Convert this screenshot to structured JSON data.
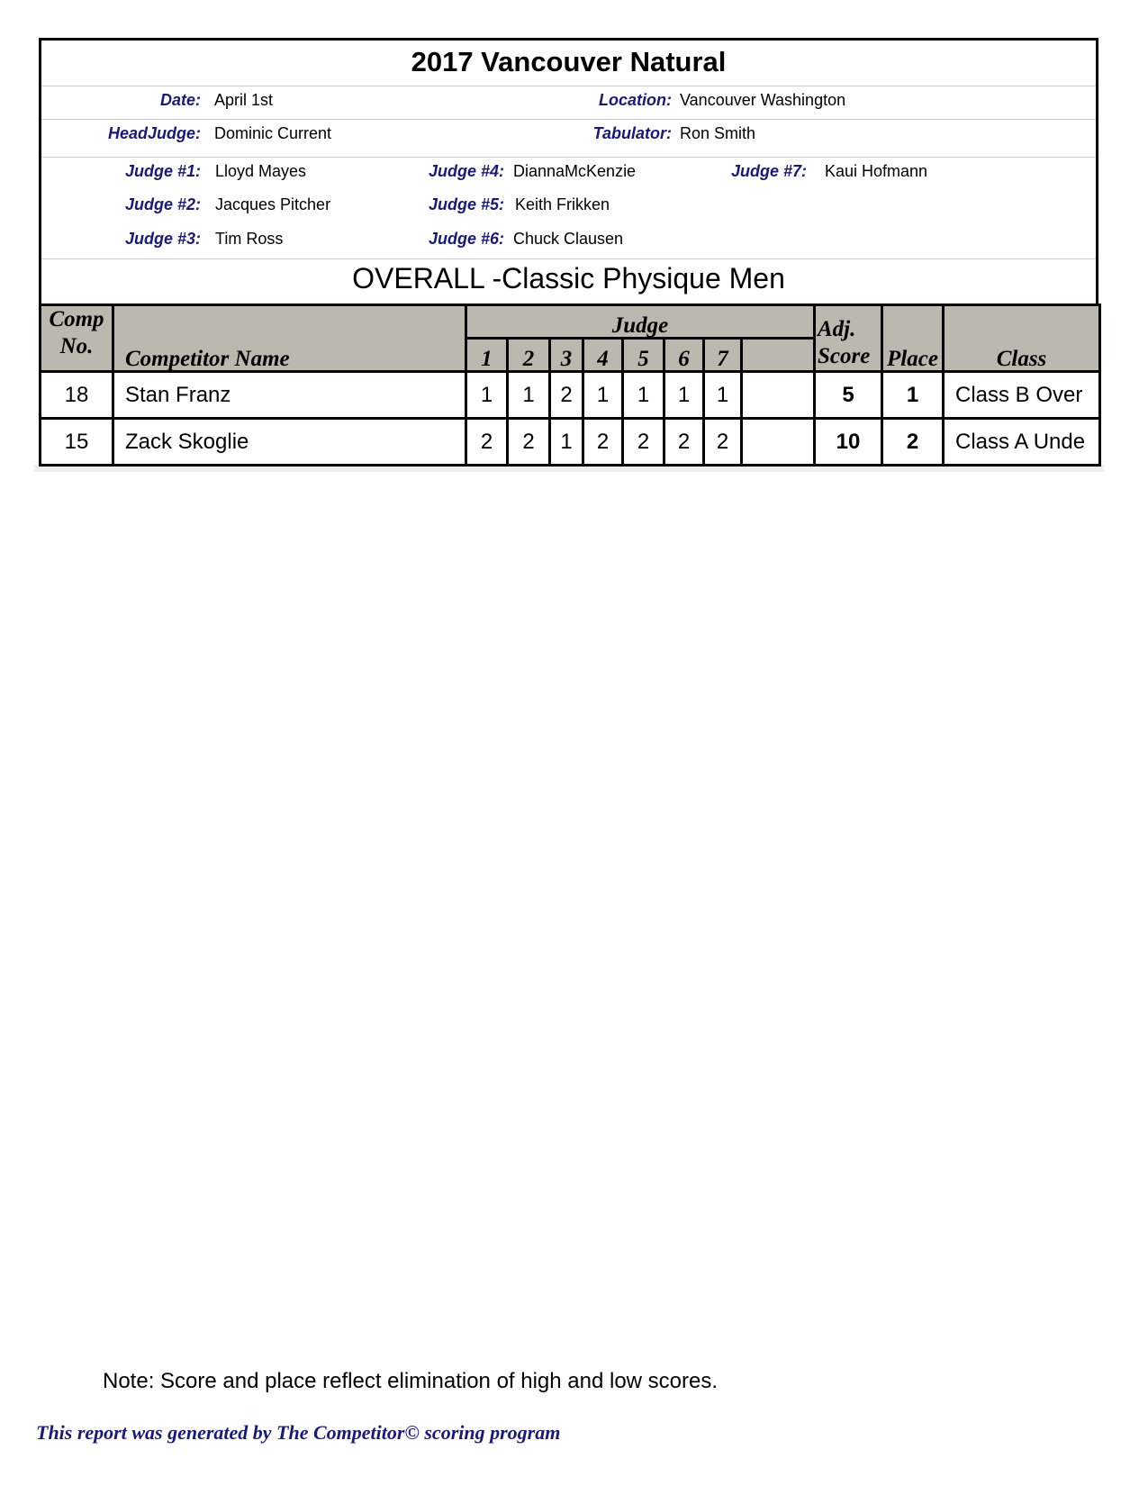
{
  "title": "2017 Vancouver Natural",
  "info": {
    "date_label": "Date:",
    "date": "April 1st",
    "location_label": "Location:",
    "location": "Vancouver Washington",
    "headjudge_label": "HeadJudge:",
    "headjudge": "Dominic Current",
    "tabulator_label": "Tabulator:",
    "tabulator": "Ron Smith"
  },
  "judges": [
    {
      "label": "Judge #1:",
      "name": "Lloyd Mayes"
    },
    {
      "label": "Judge #2:",
      "name": "Jacques Pitcher"
    },
    {
      "label": "Judge #3:",
      "name": "Tim Ross"
    },
    {
      "label": "Judge #4:",
      "name": "DiannaMcKenzie"
    },
    {
      "label": "Judge #5:",
      "name": "Keith Frikken"
    },
    {
      "label": "Judge #6:",
      "name": "Chuck Clausen"
    },
    {
      "label": "Judge #7:",
      "name": "Kaui Hofmann"
    }
  ],
  "division": "OVERALL -Classic Physique Men",
  "table": {
    "headers": {
      "comp1": "Comp",
      "comp2": "No.",
      "name": "Competitor Name",
      "judge": "Judge",
      "j": [
        "1",
        "2",
        "3",
        "4",
        "5",
        "6",
        "7"
      ],
      "adj1": "Adj.",
      "adj2": "Score",
      "place": "Place",
      "class": "Class"
    },
    "rows": [
      {
        "comp": "18",
        "name": "Stan Franz",
        "scores": [
          "1",
          "1",
          "2",
          "1",
          "1",
          "1",
          "1"
        ],
        "adj": "5",
        "place": "1",
        "class": "Class B Over"
      },
      {
        "comp": "15",
        "name": "Zack Skoglie",
        "scores": [
          "2",
          "2",
          "1",
          "2",
          "2",
          "2",
          "2"
        ],
        "adj": "10",
        "place": "2",
        "class": "Class A Unde"
      }
    ]
  },
  "note": "Note: Score and place reflect elimination of high and low scores.",
  "footer": "This report was generated by The Competitor© scoring program"
}
